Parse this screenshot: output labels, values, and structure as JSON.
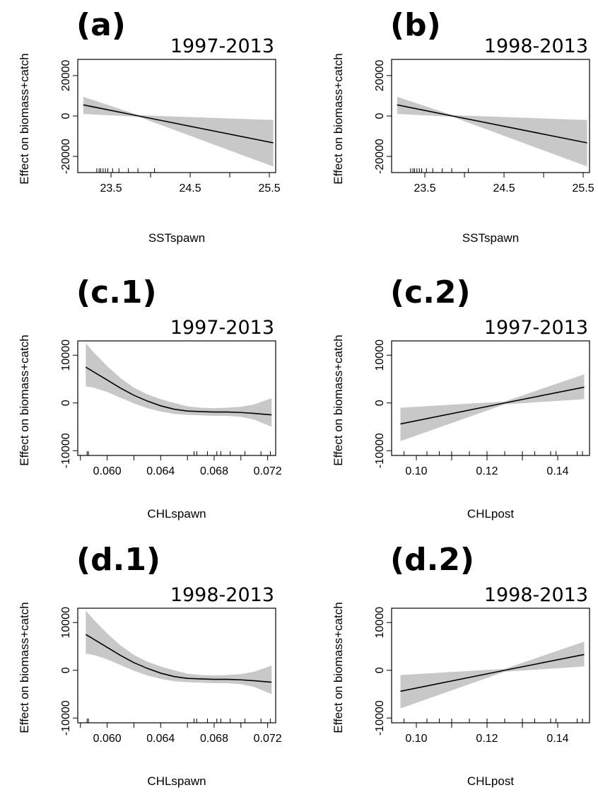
{
  "chart_data": [
    {
      "id": "a",
      "type": "line",
      "panel_label": "(a)",
      "period": "1997-2013",
      "xlabel": "SSTspawn",
      "ylabel": "Effect on biomass+catch",
      "xlim": [
        23.08,
        25.58
      ],
      "ylim": [
        -28000,
        28000
      ],
      "xticks": [
        23.5,
        24.0,
        24.5,
        25.0,
        25.5
      ],
      "xtick_labels": [
        "23.5",
        "",
        "24.5",
        "",
        "25.5"
      ],
      "yticks": [
        -20000,
        0,
        20000
      ],
      "ytick_labels": [
        "-20000",
        "0",
        "20000"
      ],
      "x": [
        23.15,
        23.85,
        25.55
      ],
      "y": [
        5500,
        0,
        -13300
      ],
      "band_lower": [
        1000,
        -400,
        -25000
      ],
      "band_upper": [
        9500,
        400,
        -2000
      ],
      "rug": [
        23.32,
        23.35,
        23.37,
        23.4,
        23.43,
        23.46,
        23.52,
        23.6,
        23.72,
        23.84,
        24.05
      ]
    },
    {
      "id": "b",
      "type": "line",
      "panel_label": "(b)",
      "period": "1998-2013",
      "xlabel": "SSTspawn",
      "ylabel": "Effect on biomass+catch",
      "xlim": [
        23.08,
        25.58
      ],
      "ylim": [
        -28000,
        28000
      ],
      "xticks": [
        23.5,
        24.0,
        24.5,
        25.0,
        25.5
      ],
      "xtick_labels": [
        "23.5",
        "",
        "24.5",
        "",
        "25.5"
      ],
      "yticks": [
        -20000,
        0,
        20000
      ],
      "ytick_labels": [
        "-20000",
        "0",
        "20000"
      ],
      "x": [
        23.15,
        23.85,
        25.55
      ],
      "y": [
        5500,
        0,
        -13300
      ],
      "band_lower": [
        1000,
        -400,
        -25000
      ],
      "band_upper": [
        9500,
        400,
        -2000
      ],
      "rug": [
        23.32,
        23.35,
        23.37,
        23.4,
        23.43,
        23.46,
        23.52,
        23.6,
        23.72,
        23.84,
        24.05
      ]
    },
    {
      "id": "c1",
      "type": "line",
      "panel_label": "(c.1)",
      "period": "1997-2013",
      "xlabel": "CHLspawn",
      "ylabel": "Effect on biomass+catch",
      "xlim": [
        0.0578,
        0.0726
      ],
      "ylim": [
        -11000,
        13000
      ],
      "xticks": [
        0.058,
        0.06,
        0.062,
        0.064,
        0.066,
        0.068,
        0.07,
        0.072
      ],
      "xtick_labels": [
        "",
        "0.060",
        "",
        "0.064",
        "",
        "0.068",
        "",
        "0.072"
      ],
      "yticks": [
        -10000,
        0,
        10000
      ],
      "ytick_labels": [
        "-10000",
        "0",
        "10000"
      ],
      "x": [
        0.0584,
        0.059,
        0.06,
        0.061,
        0.062,
        0.063,
        0.064,
        0.065,
        0.066,
        0.067,
        0.068,
        0.069,
        0.07,
        0.071,
        0.0723
      ],
      "y": [
        7500,
        6500,
        4800,
        3100,
        1600,
        400,
        -600,
        -1300,
        -1700,
        -1800,
        -1900,
        -1900,
        -2000,
        -2200,
        -2500
      ],
      "band_lower": [
        3500,
        3200,
        2300,
        1100,
        -100,
        -1100,
        -1800,
        -2300,
        -2500,
        -2600,
        -2700,
        -2700,
        -2900,
        -3500,
        -5000
      ],
      "band_upper": [
        12500,
        10600,
        7700,
        5200,
        3200,
        1800,
        800,
        0,
        -700,
        -1000,
        -1100,
        -1000,
        -800,
        -300,
        1000
      ],
      "rug": [
        0.0585,
        0.0586,
        0.0665,
        0.0667,
        0.0675,
        0.0682,
        0.0685,
        0.0692,
        0.0703,
        0.0715,
        0.0722
      ]
    },
    {
      "id": "c2",
      "type": "line",
      "panel_label": "(c.2)",
      "period": "1997-2013",
      "xlabel": "CHLpost",
      "ylabel": "Effect on biomass+catch",
      "xlim": [
        0.093,
        0.149
      ],
      "ylim": [
        -11000,
        13000
      ],
      "xticks": [
        0.1,
        0.11,
        0.12,
        0.13,
        0.14
      ],
      "xtick_labels": [
        "0.10",
        "",
        "0.12",
        "",
        "0.14"
      ],
      "yticks": [
        -10000,
        0,
        10000
      ],
      "ytick_labels": [
        "-10000",
        "0",
        "10000"
      ],
      "x": [
        0.0955,
        0.125,
        0.1475
      ],
      "y": [
        -4400,
        0,
        3300
      ],
      "band_lower": [
        -8000,
        -300,
        800
      ],
      "band_upper": [
        -1000,
        300,
        6000
      ],
      "rug": [
        0.0965,
        0.103,
        0.1065,
        0.11,
        0.115,
        0.12,
        0.125,
        0.13,
        0.1335,
        0.138,
        0.1395,
        0.1455,
        0.147
      ]
    },
    {
      "id": "d1",
      "type": "line",
      "panel_label": "(d.1)",
      "period": "1998-2013",
      "xlabel": "CHLspawn",
      "ylabel": "Effect on biomass+catch",
      "xlim": [
        0.0578,
        0.0726
      ],
      "ylim": [
        -11000,
        13000
      ],
      "xticks": [
        0.058,
        0.06,
        0.062,
        0.064,
        0.066,
        0.068,
        0.07,
        0.072
      ],
      "xtick_labels": [
        "",
        "0.060",
        "",
        "0.064",
        "",
        "0.068",
        "",
        "0.072"
      ],
      "yticks": [
        -10000,
        0,
        10000
      ],
      "ytick_labels": [
        "-10000",
        "0",
        "10000"
      ],
      "x": [
        0.0584,
        0.059,
        0.06,
        0.061,
        0.062,
        0.063,
        0.064,
        0.065,
        0.066,
        0.067,
        0.068,
        0.069,
        0.07,
        0.071,
        0.0723
      ],
      "y": [
        7500,
        6500,
        4800,
        3100,
        1600,
        400,
        -600,
        -1300,
        -1700,
        -1800,
        -1900,
        -1900,
        -2000,
        -2200,
        -2500
      ],
      "band_lower": [
        3500,
        3200,
        2300,
        1100,
        -100,
        -1100,
        -1800,
        -2300,
        -2500,
        -2600,
        -2700,
        -2700,
        -2900,
        -3500,
        -5000
      ],
      "band_upper": [
        12500,
        10600,
        7700,
        5200,
        3200,
        1800,
        800,
        0,
        -700,
        -1000,
        -1100,
        -1000,
        -800,
        -300,
        1000
      ],
      "rug": [
        0.0585,
        0.0586,
        0.0665,
        0.0667,
        0.0675,
        0.0682,
        0.0685,
        0.0692,
        0.0703,
        0.0715,
        0.0722
      ]
    },
    {
      "id": "d2",
      "type": "line",
      "panel_label": "(d.2)",
      "period": "1998-2013",
      "xlabel": "CHLpost",
      "ylabel": "Effect on biomass+catch",
      "xlim": [
        0.093,
        0.149
      ],
      "ylim": [
        -11000,
        13000
      ],
      "xticks": [
        0.1,
        0.11,
        0.12,
        0.13,
        0.14
      ],
      "xtick_labels": [
        "0.10",
        "",
        "0.12",
        "",
        "0.14"
      ],
      "yticks": [
        -10000,
        0,
        10000
      ],
      "ytick_labels": [
        "-10000",
        "0",
        "10000"
      ],
      "x": [
        0.0955,
        0.125,
        0.1475
      ],
      "y": [
        -4400,
        0,
        3300
      ],
      "band_lower": [
        -8000,
        -300,
        800
      ],
      "band_upper": [
        -1000,
        300,
        6000
      ],
      "rug": [
        0.0965,
        0.103,
        0.1065,
        0.11,
        0.115,
        0.12,
        0.125,
        0.13,
        0.1335,
        0.138,
        0.1395,
        0.1455,
        0.147
      ]
    }
  ],
  "colors": {
    "band": "#c8c8c8",
    "line": "#000000",
    "axis": "#000000"
  }
}
